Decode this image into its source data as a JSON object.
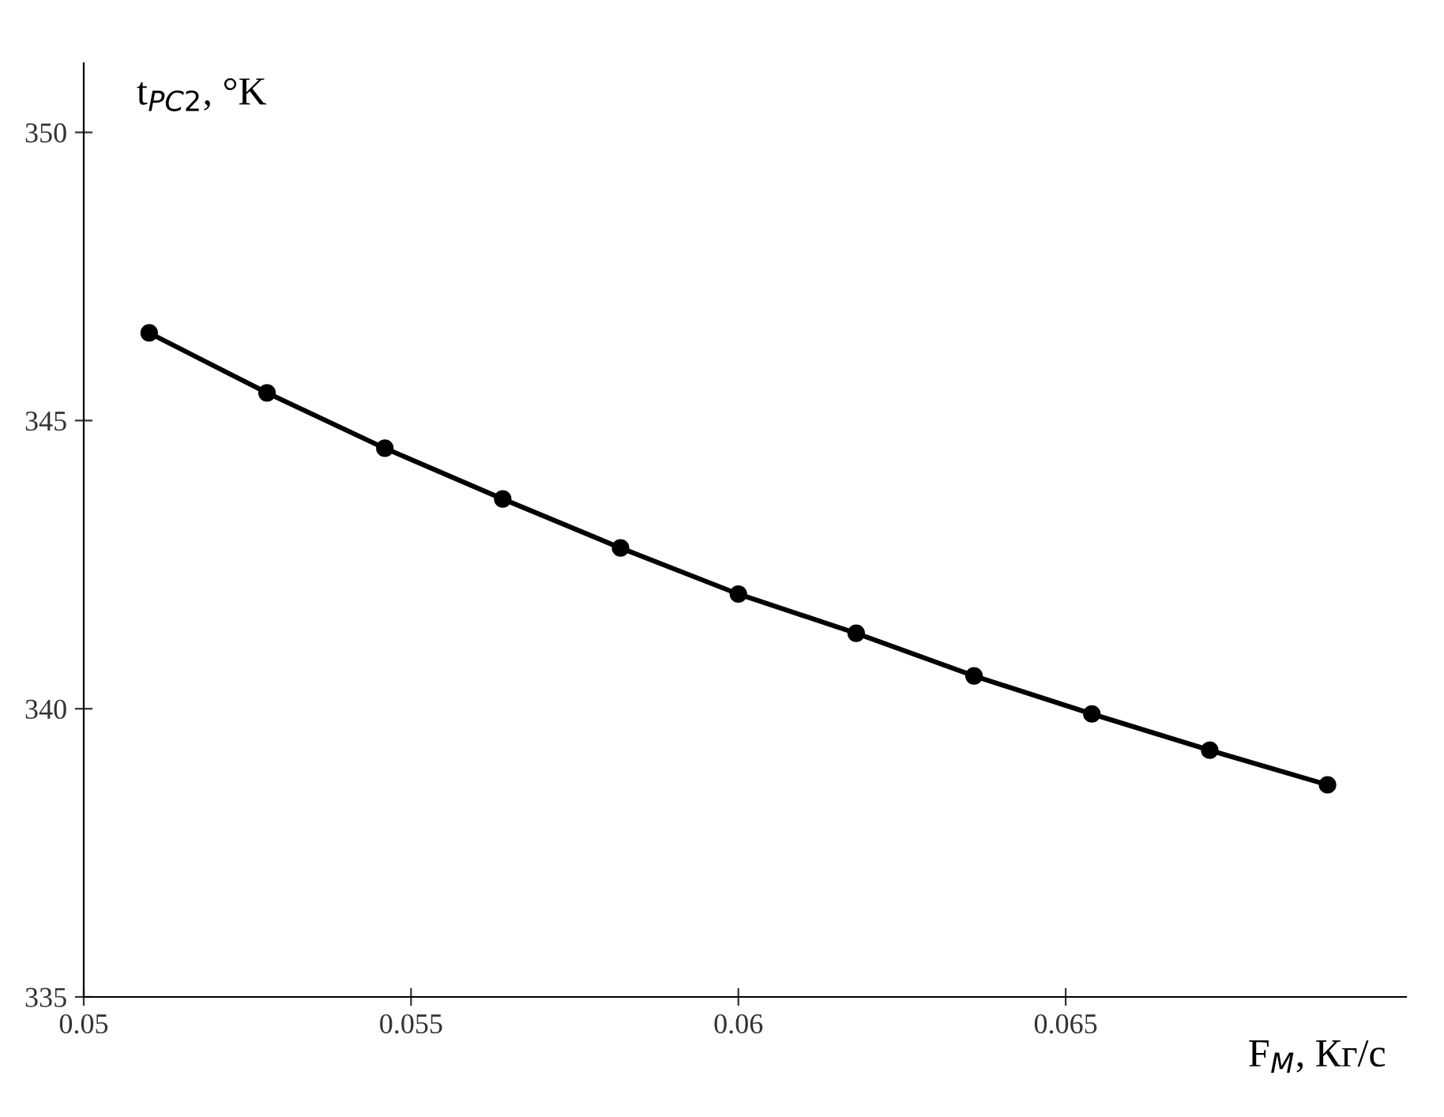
{
  "chart_data": {
    "type": "line",
    "xlabel": "F$_{M}$, Кг/с",
    "ylabel": "t$_{PC2}$, °K",
    "x": [
      0.051,
      0.0528,
      0.0546,
      0.0564,
      0.0582,
      0.06,
      0.0618,
      0.0636,
      0.0654,
      0.0672,
      0.069
    ],
    "series": [
      {
        "color": "#000000",
        "values": [
          346.52,
          345.48,
          344.52,
          343.64,
          342.79,
          341.99,
          341.31,
          340.57,
          339.91,
          339.28,
          338.68
        ]
      }
    ],
    "xlim": [
      0.05,
      0.0702
    ],
    "ylim": [
      335,
      351.2
    ],
    "xticks": [
      0.05,
      0.055,
      0.06,
      0.065
    ],
    "yticks": [
      335,
      340,
      345,
      350
    ],
    "marker": "circle",
    "line_style": "solid",
    "grid": false,
    "legend": false
  }
}
